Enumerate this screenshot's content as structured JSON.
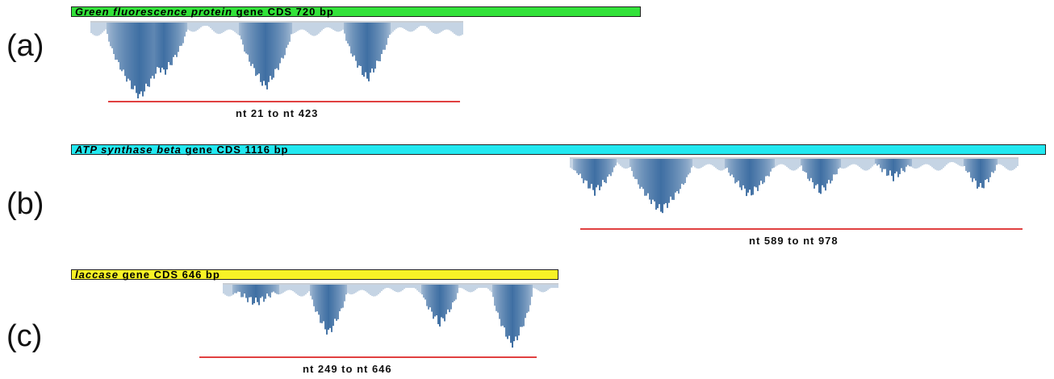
{
  "panels": [
    {
      "label": "(a)",
      "gene_italic": "Green fluorescence protein",
      "gene_rest": " gene CDS 720 bp",
      "bar_color": "#33e23a",
      "range_text": "nt 21 to nt 423"
    },
    {
      "label": "(b)",
      "gene_italic": "ATP synthase beta",
      "gene_rest": " gene CDS 1116 bp",
      "bar_color": "#22e8f0",
      "range_text": "nt 589 to nt 978"
    },
    {
      "label": "(c)",
      "gene_italic": "laccase",
      "gene_rest": " gene CDS 646 bp",
      "bar_color": "#f7f226",
      "range_text": "nt 249 to nt 646"
    }
  ],
  "colors": {
    "range_line": "#e04040",
    "coverage_dark": "#3f6fa3",
    "coverage_light": "#dde6f0"
  }
}
